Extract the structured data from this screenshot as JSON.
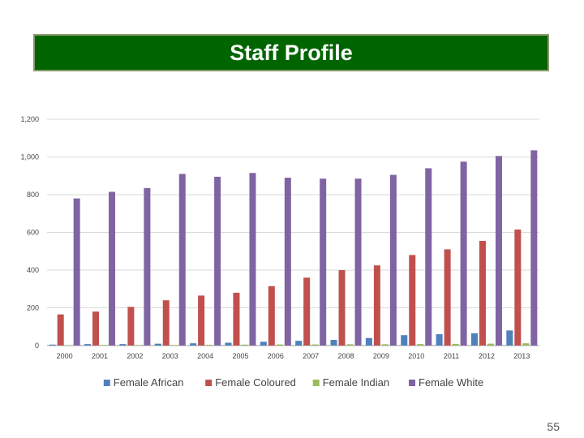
{
  "slide": {
    "title": "Staff Profile",
    "page_number": "55"
  },
  "chart_data": {
    "type": "bar",
    "categories": [
      "2000",
      "2001",
      "2002",
      "2003",
      "2004",
      "2005",
      "2006",
      "2007",
      "2008",
      "2009",
      "2010",
      "2011",
      "2012",
      "2013"
    ],
    "series": [
      {
        "name": "Female African",
        "color": "#4f81bd",
        "values": [
          5,
          8,
          8,
          10,
          12,
          15,
          20,
          25,
          30,
          40,
          55,
          60,
          65,
          80
        ]
      },
      {
        "name": "Female Coloured",
        "color": "#c0504d",
        "values": [
          165,
          180,
          205,
          240,
          265,
          280,
          315,
          360,
          400,
          425,
          480,
          510,
          555,
          615
        ]
      },
      {
        "name": "Female Indian",
        "color": "#9bbb59",
        "values": [
          2,
          3,
          3,
          3,
          4,
          5,
          6,
          6,
          7,
          7,
          8,
          9,
          10,
          12
        ]
      },
      {
        "name": "Female White",
        "color": "#8064a2",
        "values": [
          780,
          815,
          835,
          910,
          895,
          915,
          890,
          885,
          885,
          905,
          940,
          975,
          1005,
          1035
        ]
      }
    ],
    "ylim": [
      0,
      1200
    ],
    "yticks": [
      "0",
      "200",
      "400",
      "600",
      "800",
      "1,000",
      "1,200"
    ],
    "grid": true,
    "legend_position": "bottom"
  }
}
